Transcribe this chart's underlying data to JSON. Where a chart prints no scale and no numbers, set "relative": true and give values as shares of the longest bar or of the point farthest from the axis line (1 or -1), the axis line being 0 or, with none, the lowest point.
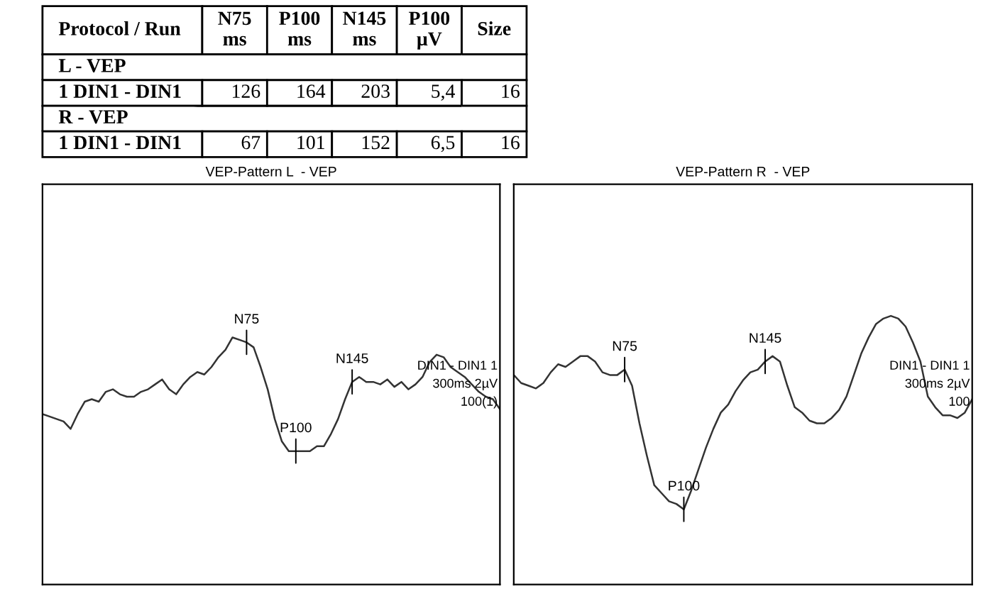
{
  "chart_data": [
    {
      "type": "other",
      "ylabel": "Protocol / Run",
      "categories": [
        "N75\nms",
        "P100\nms",
        "N145\nms",
        "P100\nµV",
        "Size"
      ],
      "y_categories": [
        "L - VEP",
        "1 DIN1 - DIN1",
        "R - VEP",
        "1 DIN1 - DIN1"
      ],
      "cell_labels": [
        [
          null,
          null,
          null,
          null,
          null
        ],
        [
          "126",
          "164",
          "203",
          "5,4",
          "16"
        ],
        [
          null,
          null,
          null,
          null,
          null
        ],
        [
          "67",
          "101",
          "152",
          "6,5",
          "16"
        ]
      ]
    },
    {
      "type": "line",
      "title": "VEP-Pattern L  - VEP",
      "relative": true,
      "categories": [
        null,
        null,
        null,
        null,
        null,
        null,
        null,
        null,
        null,
        null,
        null,
        null,
        null,
        null,
        null,
        null,
        null,
        null,
        null,
        null,
        null,
        null,
        null,
        null,
        null,
        null,
        null,
        null,
        null,
        null,
        null,
        null,
        null,
        null,
        null,
        null,
        null,
        null,
        null,
        null,
        null,
        null,
        null,
        null,
        null,
        null,
        null,
        null,
        null,
        null,
        null,
        null,
        null,
        null,
        null,
        null,
        null,
        null,
        null,
        null,
        null,
        null,
        null,
        null,
        null,
        null
      ],
      "series": [
        {
          "color": "#333333",
          "values": [
            0.69,
            0.68,
            0.67,
            0.66,
            0.63,
            0.69,
            0.74,
            0.75,
            0.74,
            0.78,
            0.79,
            0.77,
            0.76,
            0.76,
            0.78,
            0.79,
            0.81,
            0.83,
            0.79,
            0.77,
            0.81,
            0.84,
            0.86,
            0.85,
            0.88,
            0.92,
            0.95,
            1.0,
            0.99,
            0.98,
            0.96,
            0.88,
            0.79,
            0.67,
            0.58,
            0.54,
            0.54,
            0.54,
            0.54,
            0.56,
            0.56,
            0.61,
            0.67,
            0.75,
            0.82,
            0.84,
            0.82,
            0.82,
            0.81,
            0.83,
            0.8,
            0.82,
            0.79,
            0.81,
            0.84,
            0.9,
            0.93,
            0.92,
            0.88,
            0.86,
            0.84,
            0.81,
            0.78,
            0.76,
            0.75,
            0.71
          ]
        }
      ],
      "annotations": [
        {
          "text": "N75",
          "y": 0.98
        },
        {
          "text": "P100",
          "y": 0.54
        },
        {
          "text": "N145",
          "y": 0.82
        },
        "DIN1 - DIN1 1",
        "300ms 2µV",
        "100(1)"
      ]
    },
    {
      "type": "line",
      "title": "VEP-Pattern R  - VEP",
      "relative": true,
      "categories": [
        null,
        null,
        null,
        null,
        null,
        null,
        null,
        null,
        null,
        null,
        null,
        null,
        null,
        null,
        null,
        null,
        null,
        null,
        null,
        null,
        null,
        null,
        null,
        null,
        null,
        null,
        null,
        null,
        null,
        null,
        null,
        null,
        null,
        null,
        null,
        null,
        null,
        null,
        null,
        null,
        null,
        null,
        null,
        null,
        null,
        null,
        null,
        null,
        null,
        null,
        null,
        null,
        null,
        null,
        null,
        null,
        null,
        null,
        null,
        null,
        null,
        null,
        null
      ],
      "series": [
        {
          "color": "#333333",
          "values": [
            0.78,
            0.75,
            0.74,
            0.73,
            0.75,
            0.79,
            0.82,
            0.81,
            0.83,
            0.85,
            0.85,
            0.83,
            0.79,
            0.78,
            0.78,
            0.8,
            0.74,
            0.6,
            0.48,
            0.37,
            0.34,
            0.31,
            0.3,
            0.28,
            0.35,
            0.43,
            0.51,
            0.58,
            0.64,
            0.67,
            0.72,
            0.76,
            0.79,
            0.8,
            0.83,
            0.85,
            0.83,
            0.74,
            0.66,
            0.64,
            0.61,
            0.6,
            0.6,
            0.62,
            0.65,
            0.7,
            0.78,
            0.86,
            0.92,
            0.97,
            0.99,
            1.0,
            0.99,
            0.96,
            0.9,
            0.83,
            0.7,
            0.66,
            0.63,
            0.63,
            0.62,
            0.64,
            0.69
          ]
        }
      ],
      "annotations": [
        {
          "text": "N75",
          "y": 0.8
        },
        {
          "text": "P100",
          "y": 0.28
        },
        {
          "text": "N145",
          "y": 0.83
        },
        "DIN1 - DIN1 1",
        "300ms 2µV",
        "100"
      ]
    }
  ]
}
